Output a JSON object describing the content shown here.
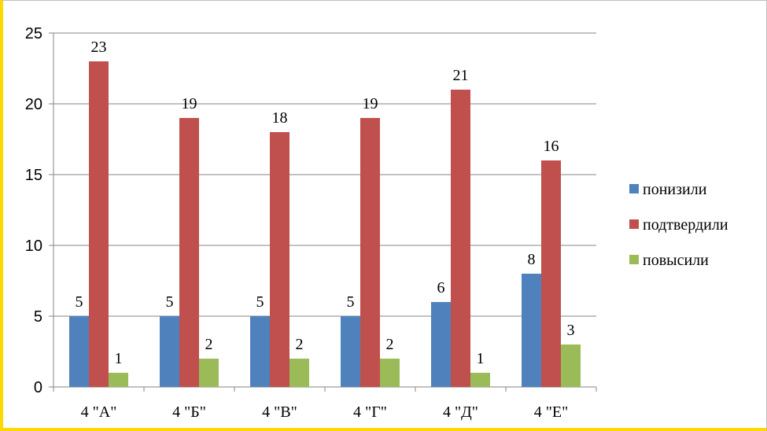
{
  "chart_data": {
    "type": "bar",
    "categories": [
      "4 \"А\"",
      "4 \"Б\"",
      "4 \"В\"",
      "4 \"Г\"",
      "4 \"Д\"",
      "4 \"Е\""
    ],
    "series": [
      {
        "name": "понизили",
        "values": [
          5,
          5,
          5,
          5,
          6,
          8
        ],
        "color": "#4f81bd"
      },
      {
        "name": "подтвердили",
        "values": [
          23,
          19,
          18,
          19,
          21,
          16
        ],
        "color": "#c0504d"
      },
      {
        "name": "повысили",
        "values": [
          1,
          2,
          2,
          2,
          1,
          3
        ],
        "color": "#9bbb59"
      }
    ],
    "ylim": [
      0,
      25
    ],
    "yticks": [
      0,
      5,
      10,
      15,
      20,
      25
    ],
    "grid": true,
    "legend_position": "right",
    "data_labels": true
  }
}
